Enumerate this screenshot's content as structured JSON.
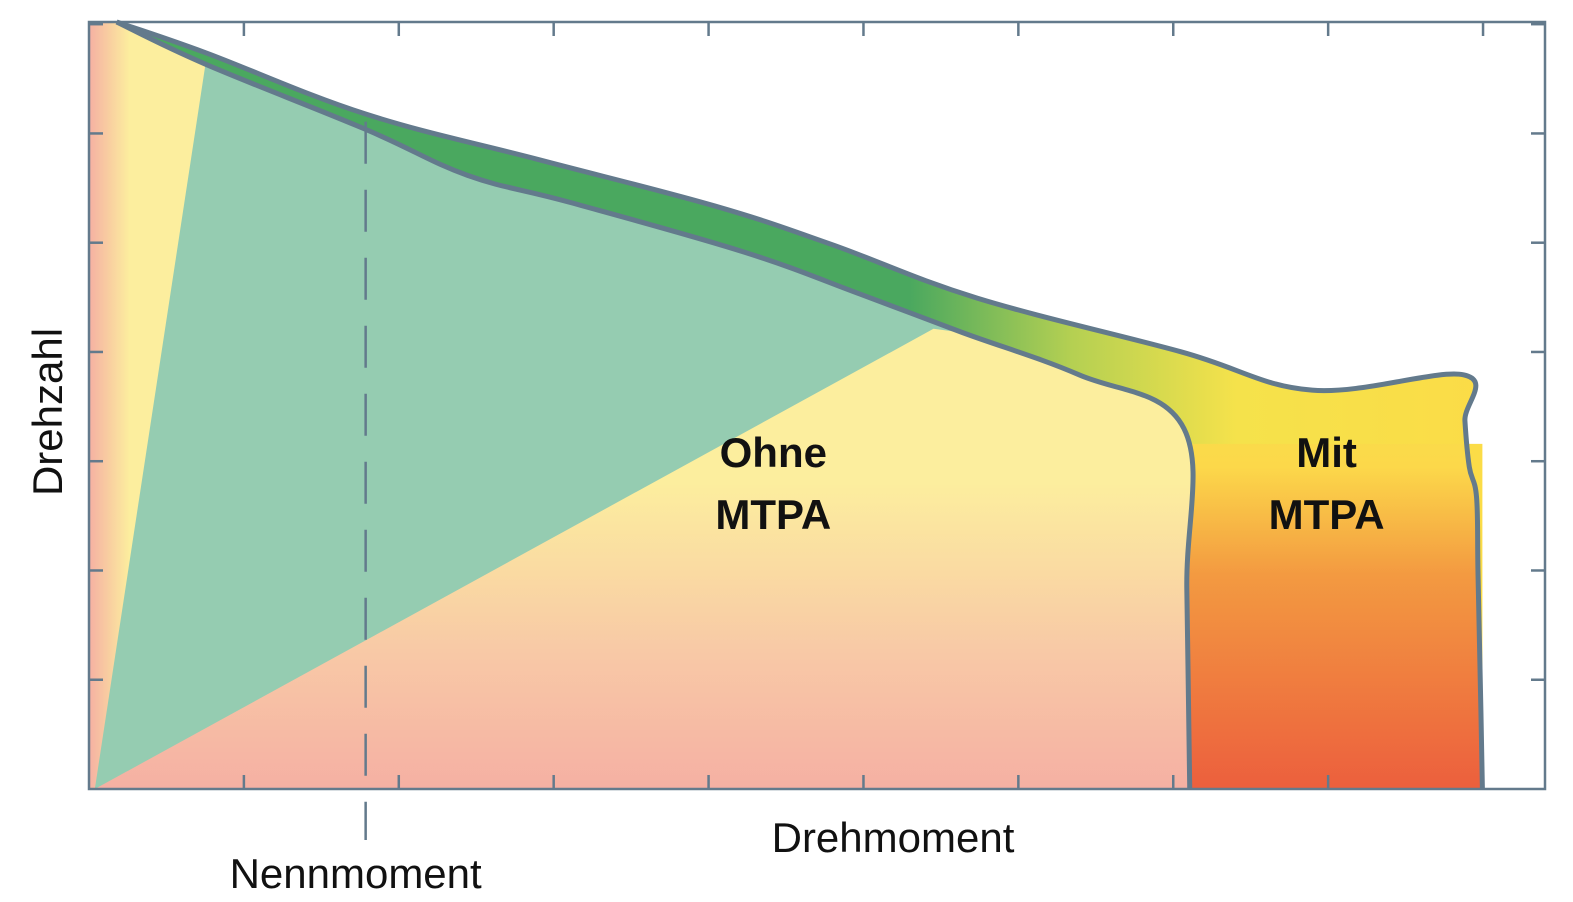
{
  "chart_data": {
    "type": "area",
    "title": "",
    "xlabel": "Drehmoment",
    "ylabel": "Drehzahl",
    "xlim": [
      0,
      1
    ],
    "ylim": [
      0,
      1
    ],
    "x_ticks_count": 9,
    "y_ticks_count": 7,
    "grid": false,
    "annotations": [
      {
        "label": "Nennmoment",
        "x": 0.19,
        "style": "dashed vertical line"
      }
    ],
    "series": [
      {
        "name": "Mit MTPA",
        "x": [
          0.019,
          0.08,
          0.19,
          0.31,
          0.43,
          0.51,
          0.61,
          0.75,
          0.84,
          0.944,
          0.945,
          0.948,
          0.953,
          0.954,
          0.956,
          0.957
        ],
        "y": [
          1.0,
          0.96,
          0.88,
          0.82,
          0.76,
          0.71,
          0.64,
          0.57,
          0.52,
          0.54,
          0.48,
          0.42,
          0.38,
          0.28,
          0.1,
          0.0
        ]
      },
      {
        "name": "Ohne MTPA",
        "x": [
          0.019,
          0.08,
          0.19,
          0.26,
          0.33,
          0.45,
          0.53,
          0.6,
          0.68,
          0.752,
          0.754,
          0.756
        ],
        "y": [
          1.0,
          0.945,
          0.86,
          0.8,
          0.765,
          0.7,
          0.645,
          0.595,
          0.54,
          0.47,
          0.26,
          0.0
        ]
      }
    ],
    "colors": {
      "outline": "#637a8c",
      "teal": "#95ccb1",
      "green": "#4aa85f",
      "yellow": "#f7e148",
      "pale_yellow": "#fcee9e",
      "pink": "#f5b0a3",
      "red_orange": "#ec5f3d",
      "orange": "#f39a41"
    },
    "regions": [
      {
        "label_line1": "Ohne",
        "label_line2": "MTPA",
        "x": 0.47,
        "y": 0.42
      },
      {
        "label_line1": "Mit",
        "label_line2": "MTPA",
        "x": 0.85,
        "y": 0.42
      }
    ]
  }
}
